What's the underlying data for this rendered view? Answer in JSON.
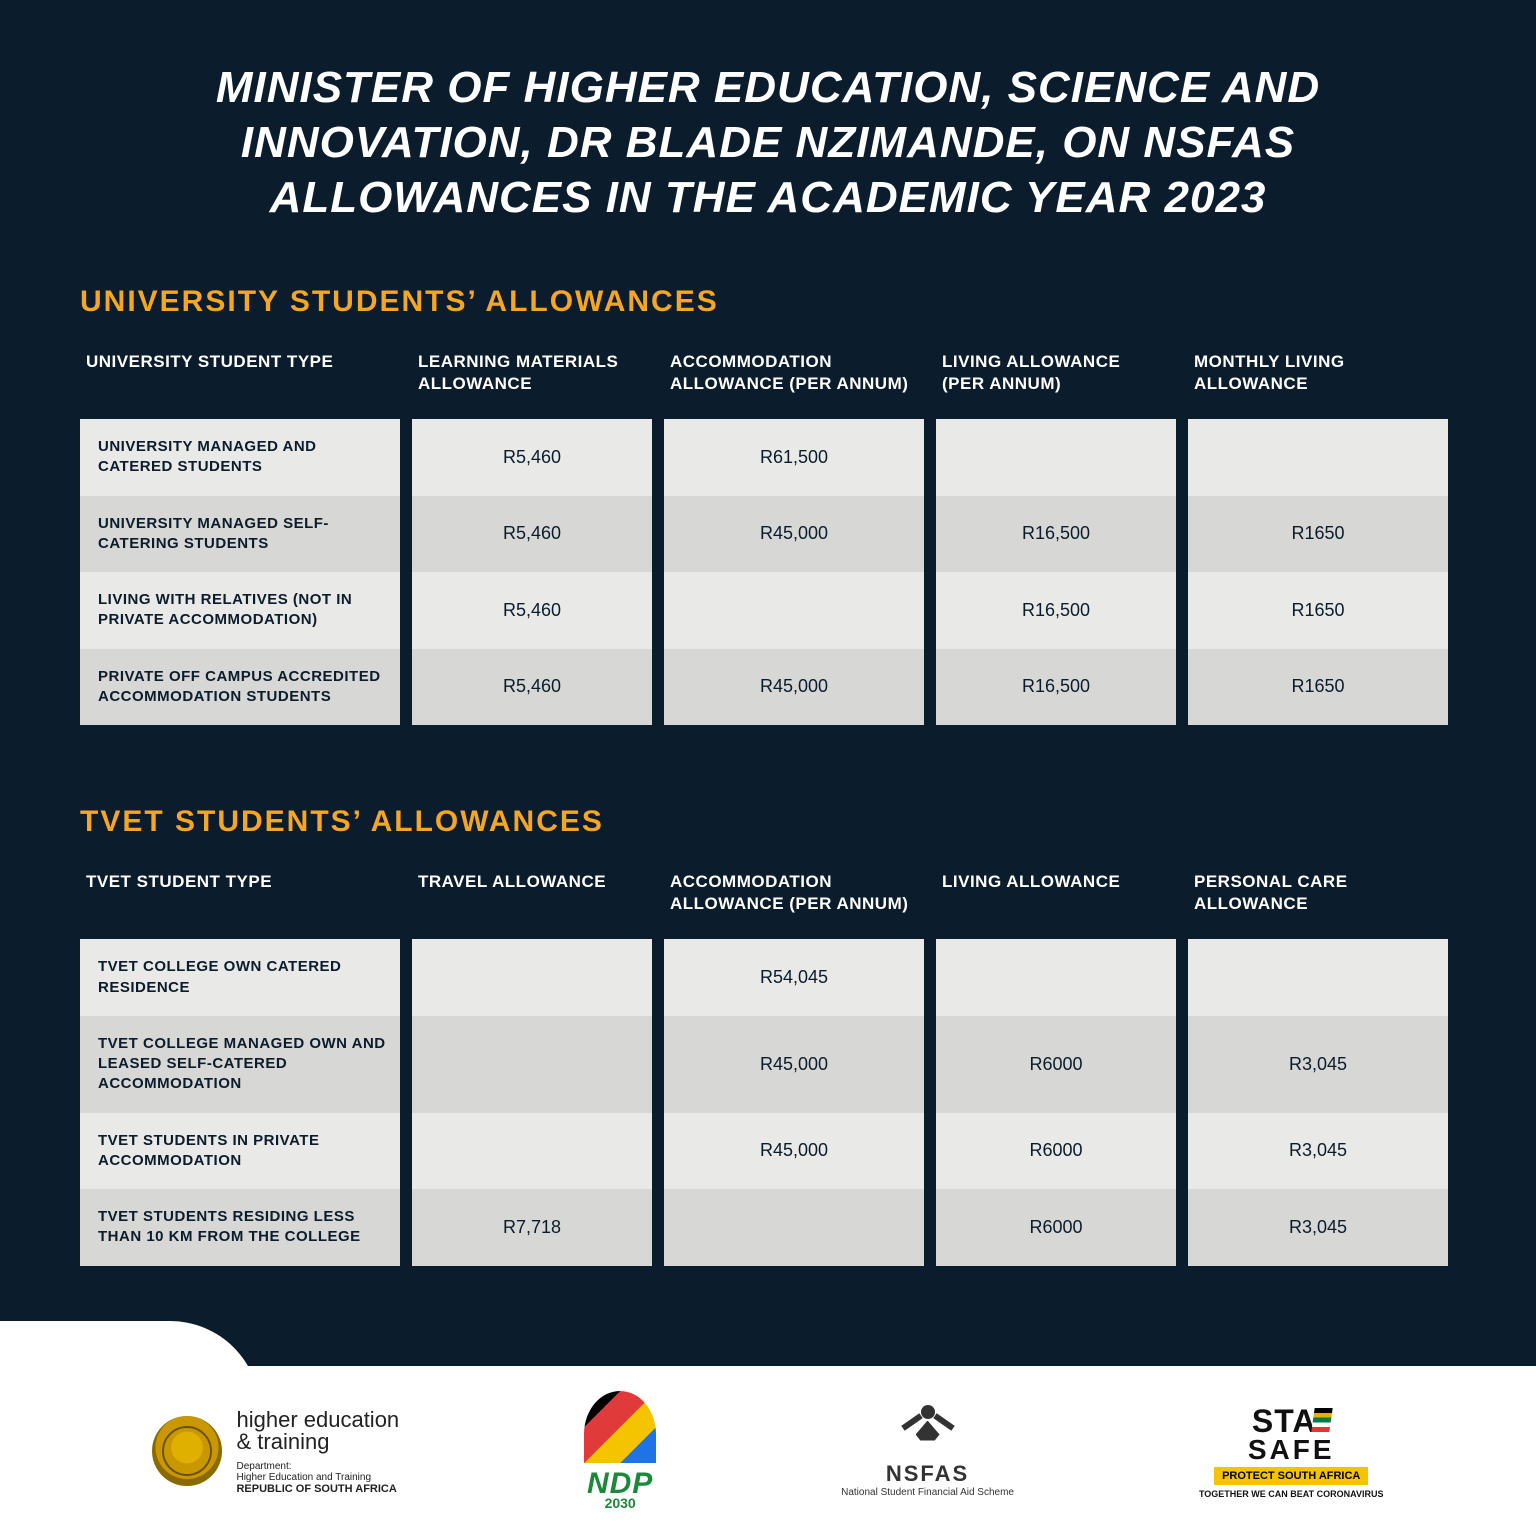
{
  "colors": {
    "page_bg": "#0b1c2c",
    "accent": "#f5a623",
    "text_light": "#ffffff",
    "text_dark": "#0b1c2c",
    "row_light": "#e9e9e7",
    "row_dark": "#d7d7d5",
    "footer_bg": "#ffffff"
  },
  "title": "MINISTER OF HIGHER EDUCATION, SCIENCE AND INNOVATION, DR BLADE NZIMANDE, ON NSFAS ALLOWANCES IN THE ACADEMIC YEAR 2023",
  "university": {
    "heading": "UNIVERSITY STUDENTS’ ALLOWANCES",
    "columns": [
      "UNIVERSITY STUDENT TYPE",
      "LEARNING MATERIALS ALLOWANCE",
      "ACCOMMODATION ALLOWANCE (PER ANNUM)",
      "LIVING ALLOWANCE (PER ANNUM)",
      "MONTHLY LIVING ALLOWANCE"
    ],
    "rows": [
      {
        "label": "UNIVERSITY MANAGED AND CATERED STUDENTS",
        "c1": "R5,460",
        "c2": "R61,500",
        "c3": "",
        "c4": ""
      },
      {
        "label": "UNIVERSITY MANAGED SELF-CATERING STUDENTS",
        "c1": "R5,460",
        "c2": "R45,000",
        "c3": "R16,500",
        "c4": "R1650"
      },
      {
        "label": "LIVING WITH RELATIVES (NOT IN PRIVATE ACCOMMODATION)",
        "c1": "R5,460",
        "c2": "",
        "c3": "R16,500",
        "c4": "R1650"
      },
      {
        "label": "PRIVATE OFF CAMPUS ACCREDITED ACCOMMODATION STUDENTS",
        "c1": "R5,460",
        "c2": "R45,000",
        "c3": "R16,500",
        "c4": "R1650"
      }
    ]
  },
  "tvet": {
    "heading": "TVET STUDENTS’ ALLOWANCES",
    "columns": [
      "TVET STUDENT TYPE",
      "TRAVEL ALLOWANCE",
      "ACCOMMODATION ALLOWANCE (PER ANNUM)",
      "LIVING ALLOWANCE",
      "PERSONAL CARE ALLOWANCE"
    ],
    "rows": [
      {
        "label": "TVET COLLEGE OWN CATERED RESIDENCE",
        "c1": "",
        "c2": "R54,045",
        "c3": "",
        "c4": ""
      },
      {
        "label": "TVET COLLEGE MANAGED OWN AND LEASED SELF-CATERED ACCOMMODATION",
        "c1": "",
        "c2": "R45,000",
        "c3": "R6000",
        "c4": "R3,045"
      },
      {
        "label": "TVET STUDENTS IN PRIVATE ACCOMMODATION",
        "c1": "",
        "c2": "R45,000",
        "c3": "R6000",
        "c4": "R3,045"
      },
      {
        "label": "TVET STUDENTS RESIDING LESS THAN 10 KM FROM THE COLLEGE",
        "c1": "R7,718",
        "c2": "",
        "c3": "R6000",
        "c4": "R3,045"
      }
    ]
  },
  "footer": {
    "het": {
      "line1": "higher education",
      "line2": "& training",
      "line3": "Department:",
      "line4": "Higher Education and Training",
      "line5": "REPUBLIC OF SOUTH AFRICA"
    },
    "ndp": {
      "label": "NDP",
      "year": "2030"
    },
    "nsfas": {
      "title": "NSFAS",
      "sub": "National Student Financial Aid Scheme"
    },
    "stay": {
      "word": "STA",
      "safe": "SAFE",
      "bar": "PROTECT SOUTH AFRICA",
      "tag": "TOGETHER WE CAN BEAT CORONAVIRUS"
    }
  }
}
